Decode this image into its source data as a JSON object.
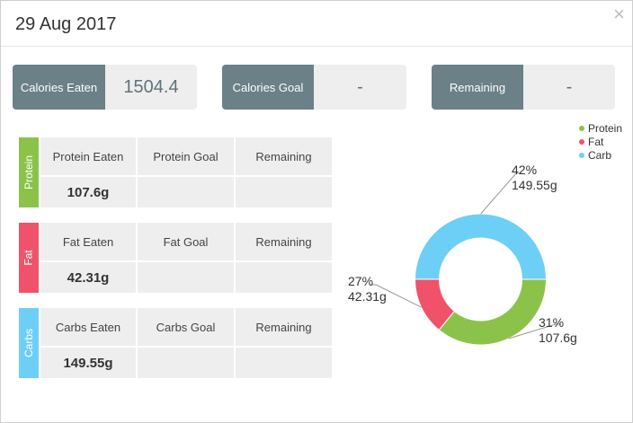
{
  "dialog": {
    "title": "29 Aug 2017",
    "close_glyph": "×"
  },
  "summary": {
    "calories_eaten": {
      "label": "Calories Eaten",
      "value": "1504.4"
    },
    "calories_goal": {
      "label": "Calories Goal",
      "value": "-"
    },
    "remaining": {
      "label": "Remaining",
      "value": "-"
    }
  },
  "macros": {
    "protein": {
      "side_label": "Protein",
      "color": "#8bc34a",
      "headers": [
        "Protein Eaten",
        "Protein Goal",
        "Remaining"
      ],
      "values": [
        "107.6g",
        "",
        ""
      ]
    },
    "fat": {
      "side_label": "Fat",
      "color": "#f0526a",
      "headers": [
        "Fat Eaten",
        "Fat Goal",
        "Remaining"
      ],
      "values": [
        "42.31g",
        "",
        ""
      ]
    },
    "carbs": {
      "side_label": "Carbs",
      "color": "#6dcff6",
      "headers": [
        "Carbs Eaten",
        "Carbs Goal",
        "Remaining"
      ],
      "values": [
        "149.55g",
        "",
        ""
      ]
    }
  },
  "chart_data": {
    "type": "pie",
    "title": "",
    "legend_position": "top-right",
    "series": [
      {
        "name": "Protein",
        "value": 107.6,
        "percent_label": "31%",
        "value_label": "107.6g",
        "color": "#8bc34a"
      },
      {
        "name": "Fat",
        "value": 42.31,
        "percent_label": "27%",
        "value_label": "42.31g",
        "color": "#f0526a"
      },
      {
        "name": "Carb",
        "value": 149.55,
        "percent_label": "42%",
        "value_label": "149.55g",
        "color": "#6dcff6"
      }
    ]
  }
}
